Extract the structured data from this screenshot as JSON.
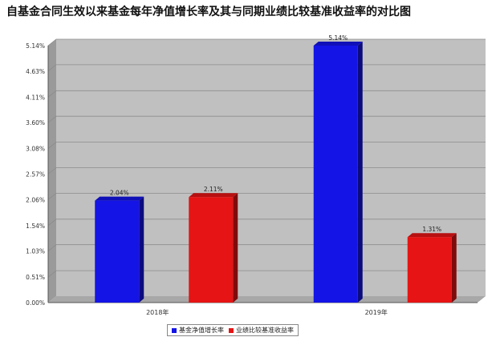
{
  "title": "自基金合同生效以来基金每年净值增长率及其与同期业绩比较基准收益率的对比图",
  "chart_data": {
    "type": "bar",
    "title": "自基金合同生效以来基金每年净值增长率及其与同期业绩比较基准收益率的对比图",
    "categories": [
      "2018年",
      "2019年"
    ],
    "series": [
      {
        "name": "基金净值增长率",
        "color": "#1414e6",
        "values": [
          2.04,
          5.14
        ]
      },
      {
        "name": "业绩比较基准收益率",
        "color": "#e61414",
        "values": [
          2.11,
          1.31
        ]
      }
    ],
    "data_labels": [
      [
        "2.04%",
        "2.11%"
      ],
      [
        "5.14%",
        "1.31%"
      ]
    ],
    "yticks": [
      0.0,
      0.51,
      1.03,
      1.54,
      2.06,
      2.57,
      3.08,
      3.6,
      4.11,
      4.63,
      5.14
    ],
    "ytick_labels": [
      "0.00%",
      "0.51%",
      "1.03%",
      "1.54%",
      "2.06%",
      "2.57%",
      "3.08%",
      "3.60%",
      "4.11%",
      "4.63%",
      "5.14%"
    ],
    "ylim": [
      0,
      5.14
    ],
    "grid": true,
    "legend_position": "bottom",
    "xlabel": "",
    "ylabel": ""
  }
}
